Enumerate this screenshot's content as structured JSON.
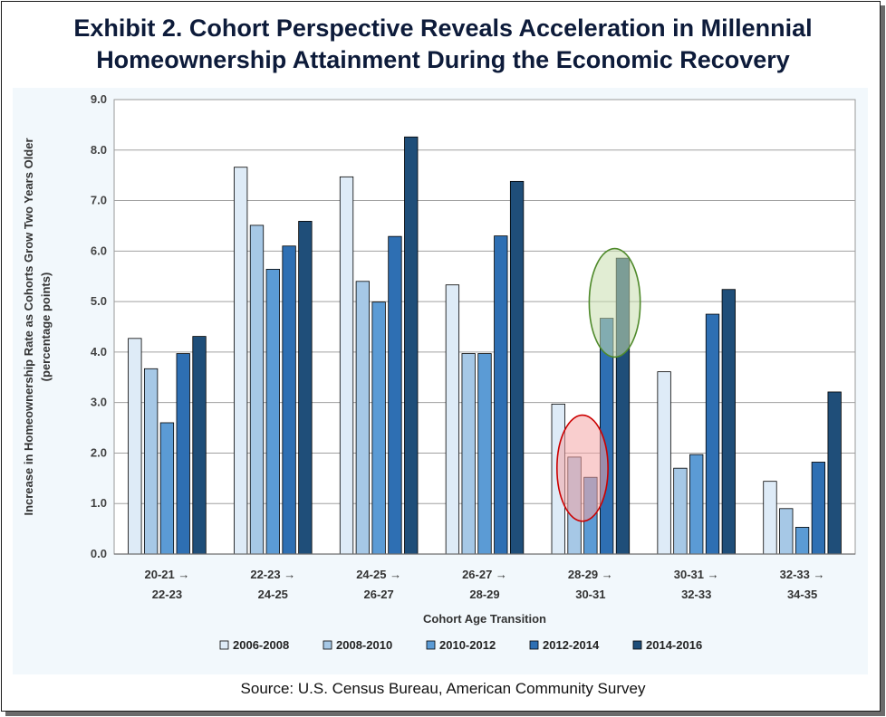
{
  "title": {
    "line1": "Exhibit 2. Cohort Perspective Reveals Acceleration in Millennial",
    "line2": "Homeownership Attainment During the Economic Recovery"
  },
  "source": "Source: U.S. Census Bureau, American Community Survey",
  "chart_data": {
    "type": "bar",
    "title": "Exhibit 2. Cohort Perspective Reveals Acceleration in Millennial Homeownership Attainment During the Economic Recovery",
    "xlabel": "Cohort Age Transition",
    "ylabel": "Increase in Homeownership Rate as Cohorts Grow Two Years Older",
    "ylabel_sub": "(percentage points)",
    "ylim": [
      0,
      9
    ],
    "yticks": [
      "0.0",
      "1.0",
      "2.0",
      "3.0",
      "4.0",
      "5.0",
      "6.0",
      "7.0",
      "8.0",
      "9.0"
    ],
    "grid": true,
    "legend_position": "bottom",
    "categories": [
      [
        "20-21 →",
        "22-23"
      ],
      [
        "22-23 →",
        "24-25"
      ],
      [
        "24-25 →",
        "26-27"
      ],
      [
        "26-27 →",
        "28-29"
      ],
      [
        "28-29 →",
        "30-31"
      ],
      [
        "30-31 →",
        "32-33"
      ],
      [
        "32-33 →",
        "34-35"
      ]
    ],
    "series": [
      {
        "name": "2006-2008",
        "color": "#deebf7",
        "values": [
          4.27,
          7.66,
          7.47,
          5.33,
          2.97,
          3.61,
          1.44
        ]
      },
      {
        "name": "2008-2010",
        "color": "#a6c8e6",
        "values": [
          3.67,
          6.51,
          5.4,
          3.97,
          1.92,
          1.7,
          0.9
        ]
      },
      {
        "name": "2010-2012",
        "color": "#5b9bd5",
        "values": [
          2.6,
          5.64,
          4.99,
          3.97,
          1.52,
          1.97,
          0.53
        ]
      },
      {
        "name": "2012-2014",
        "color": "#2e6fb3",
        "values": [
          3.97,
          6.1,
          6.29,
          6.3,
          4.67,
          4.75,
          1.82
        ]
      },
      {
        "name": "2014-2016",
        "color": "#1f4e79",
        "values": [
          4.31,
          6.59,
          8.26,
          7.38,
          5.86,
          5.24,
          3.21
        ]
      }
    ],
    "annotations": [
      {
        "type": "ellipse",
        "color": "#cc0000",
        "fill": "#f4a6a6",
        "category_index": 4,
        "series": [
          "2008-2010",
          "2010-2012"
        ],
        "y_range": [
          0.65,
          2.75
        ]
      },
      {
        "type": "ellipse",
        "color": "#4f8a2b",
        "fill": "#c8dfae",
        "category_index": 4,
        "series": [
          "2012-2014",
          "2014-2016"
        ],
        "y_range": [
          3.9,
          6.05
        ]
      }
    ]
  }
}
